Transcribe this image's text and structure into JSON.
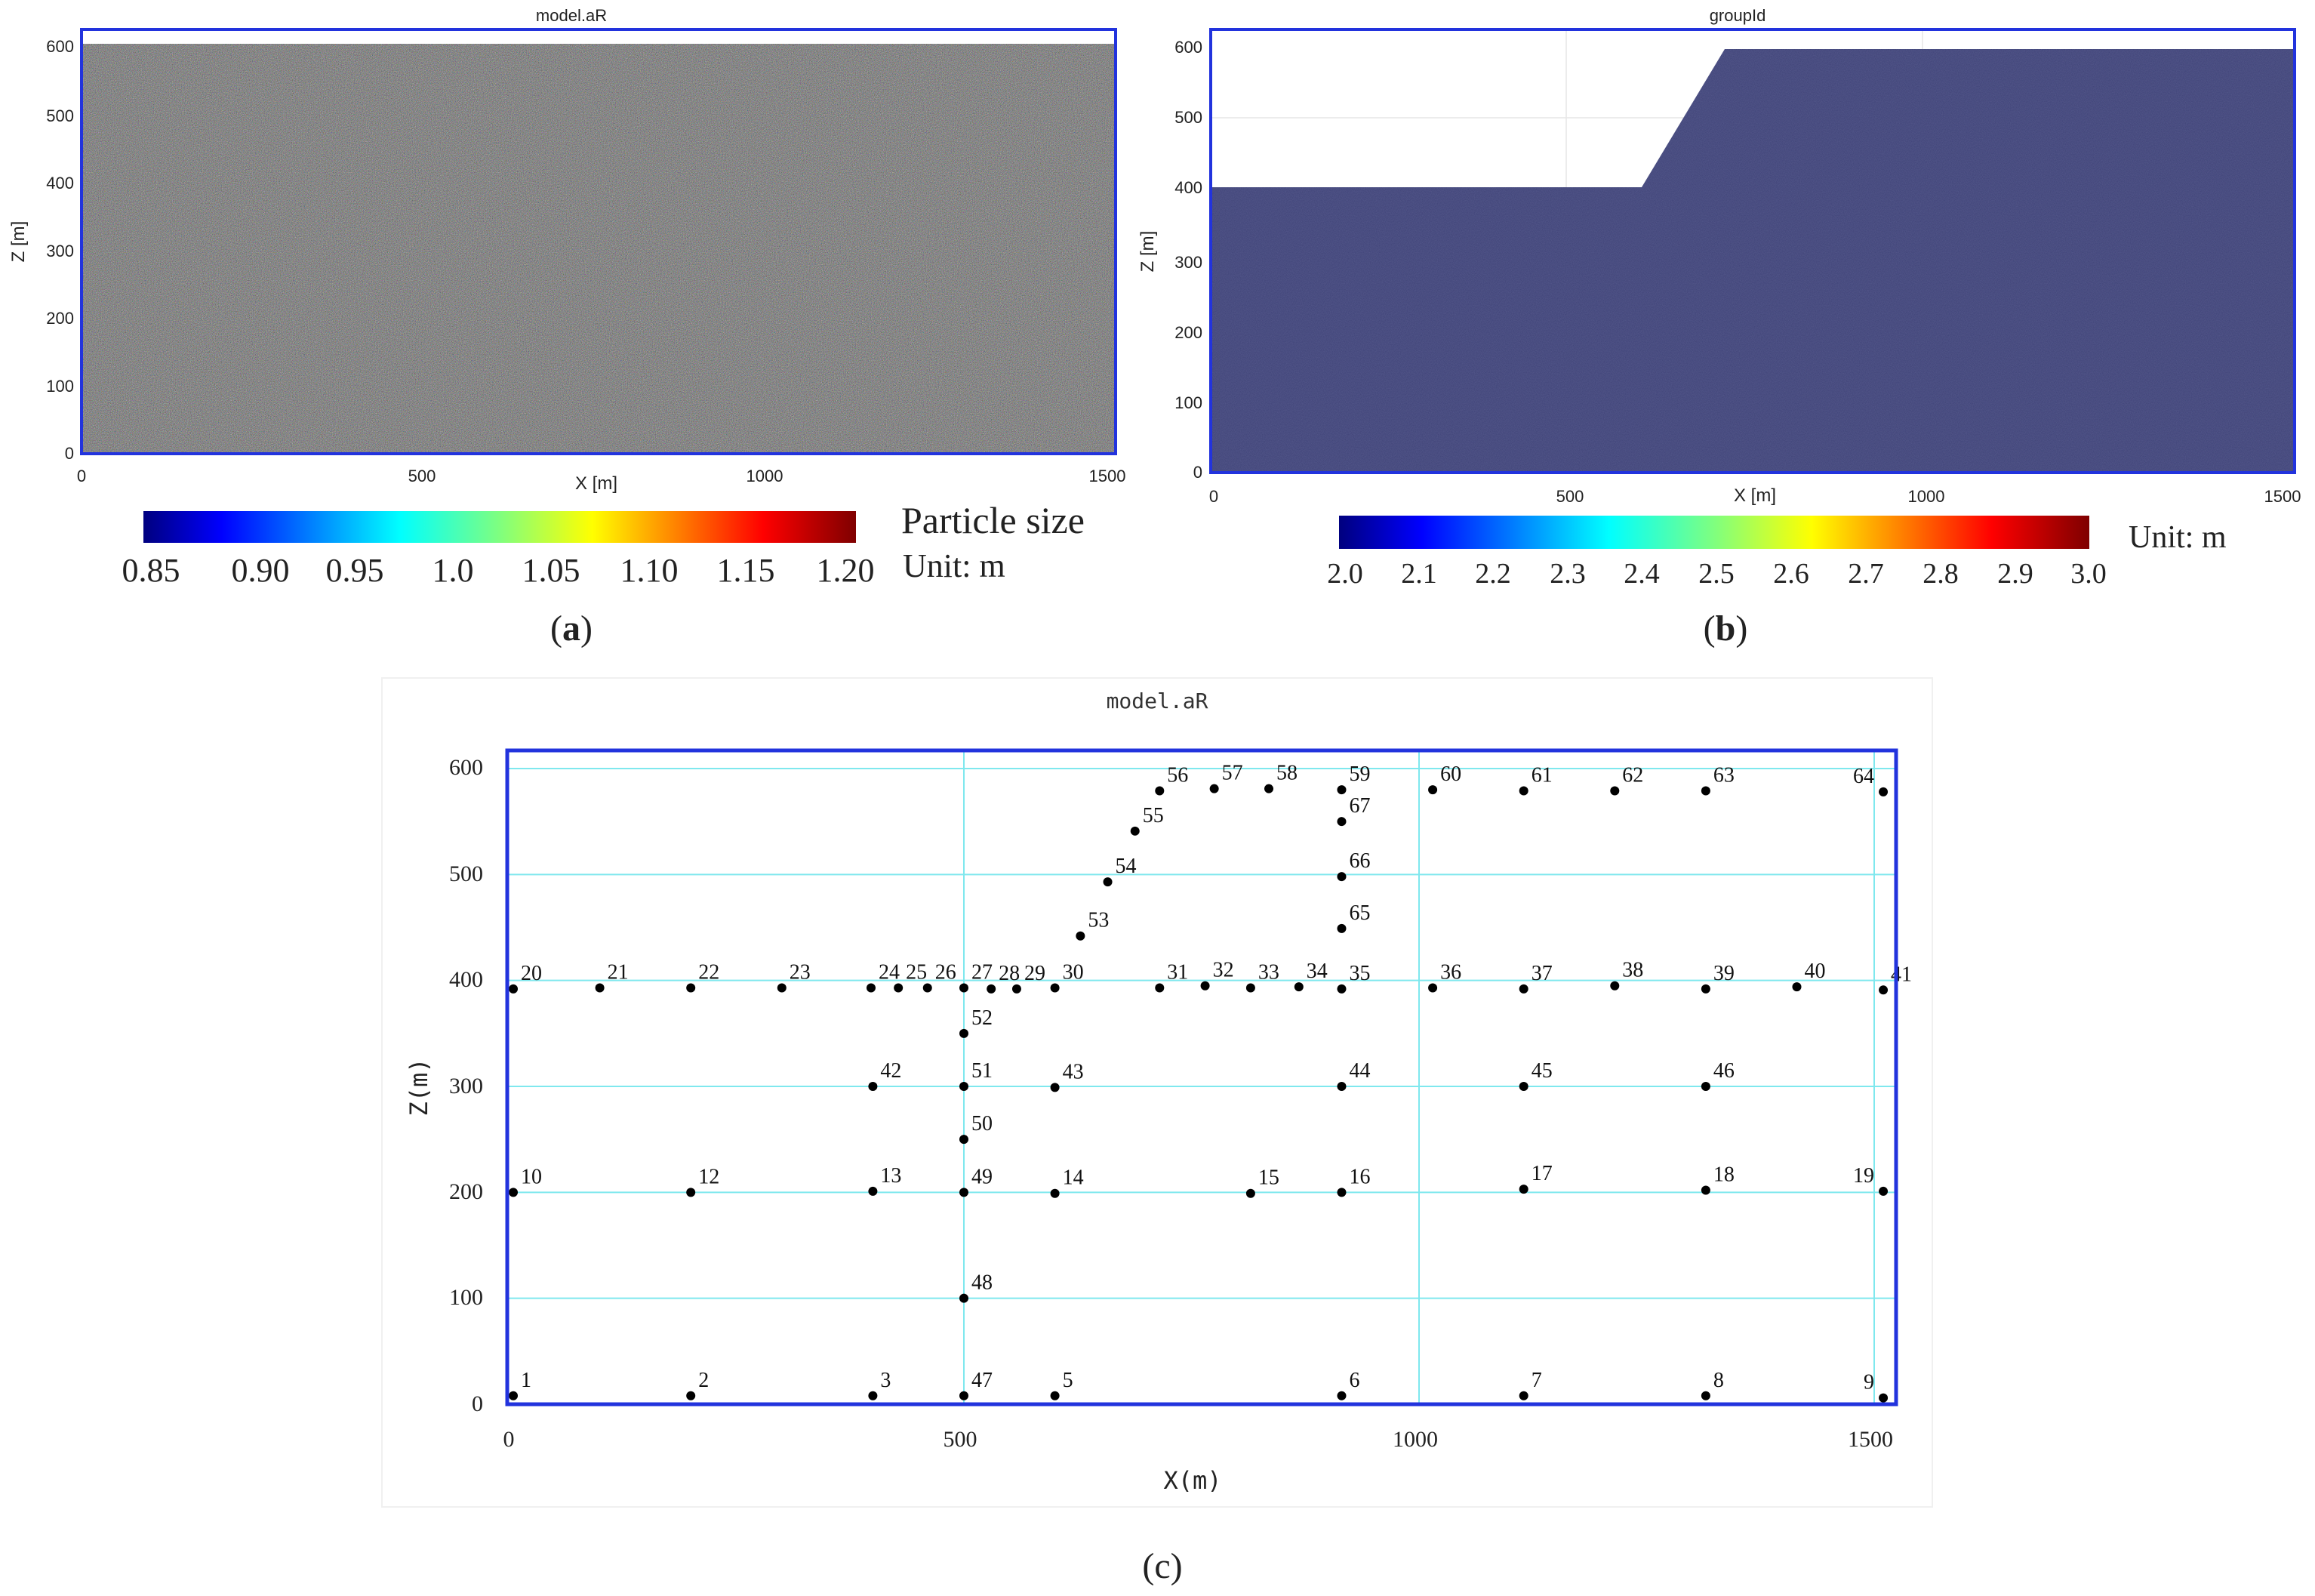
{
  "panel_a": {
    "title": "model.aR",
    "xlabel": "X [m]",
    "ylabel": "Z [m]",
    "xticks": [
      "0",
      "500",
      "1000",
      "1500"
    ],
    "yticks": [
      "0",
      "100",
      "200",
      "300",
      "400",
      "500",
      "600"
    ],
    "colorbar_ticks": [
      "0.85",
      "0.90",
      "0.95",
      "1.0",
      "1.05",
      "1.10",
      "1.15",
      "1.20"
    ],
    "colorbar_title": "Particle size",
    "colorbar_unit": "Unit: m",
    "caption_open": "(",
    "caption_letter": "a",
    "caption_close": ")"
  },
  "panel_b": {
    "title": "groupId",
    "xlabel": "X [m]",
    "ylabel": "Z [m]",
    "xticks": [
      "0",
      "500",
      "1000",
      "1500"
    ],
    "yticks": [
      "0",
      "100",
      "200",
      "300",
      "400",
      "500",
      "600"
    ],
    "colorbar_ticks": [
      "2.0",
      "2.1",
      "2.2",
      "2.3",
      "2.4",
      "2.5",
      "2.6",
      "2.7",
      "2.8",
      "2.9",
      "3.0"
    ],
    "colorbar_unit": "Unit: m",
    "caption_open": "(",
    "caption_letter": "b",
    "caption_close": ")"
  },
  "panel_c": {
    "title": "model.aR",
    "xlabel": "X(m)",
    "ylabel": "Z(m)",
    "xticks": [
      "0",
      "500",
      "1000",
      "1500"
    ],
    "yticks": [
      "0",
      "100",
      "200",
      "300",
      "400",
      "500",
      "600"
    ],
    "caption": "(c)",
    "points": [
      {
        "id": "1",
        "x": 5,
        "z": 8
      },
      {
        "id": "2",
        "x": 200,
        "z": 8
      },
      {
        "id": "3",
        "x": 400,
        "z": 8
      },
      {
        "id": "47",
        "x": 500,
        "z": 8
      },
      {
        "id": "5",
        "x": 600,
        "z": 8
      },
      {
        "id": "6",
        "x": 915,
        "z": 8
      },
      {
        "id": "7",
        "x": 1115,
        "z": 8
      },
      {
        "id": "8",
        "x": 1315,
        "z": 8
      },
      {
        "id": "9",
        "x": 1510,
        "z": 6
      },
      {
        "id": "48",
        "x": 500,
        "z": 100
      },
      {
        "id": "10",
        "x": 5,
        "z": 200
      },
      {
        "id": "12",
        "x": 200,
        "z": 200
      },
      {
        "id": "13",
        "x": 400,
        "z": 201
      },
      {
        "id": "49",
        "x": 500,
        "z": 200
      },
      {
        "id": "14",
        "x": 600,
        "z": 199
      },
      {
        "id": "15",
        "x": 815,
        "z": 199
      },
      {
        "id": "16",
        "x": 915,
        "z": 200
      },
      {
        "id": "17",
        "x": 1115,
        "z": 203
      },
      {
        "id": "18",
        "x": 1315,
        "z": 202
      },
      {
        "id": "19",
        "x": 1510,
        "z": 201
      },
      {
        "id": "50",
        "x": 500,
        "z": 250
      },
      {
        "id": "42",
        "x": 400,
        "z": 300
      },
      {
        "id": "51",
        "x": 500,
        "z": 300
      },
      {
        "id": "43",
        "x": 600,
        "z": 299
      },
      {
        "id": "44",
        "x": 915,
        "z": 300
      },
      {
        "id": "45",
        "x": 1115,
        "z": 300
      },
      {
        "id": "46",
        "x": 1315,
        "z": 300
      },
      {
        "id": "52",
        "x": 500,
        "z": 350
      },
      {
        "id": "20",
        "x": 5,
        "z": 392
      },
      {
        "id": "21",
        "x": 100,
        "z": 393
      },
      {
        "id": "22",
        "x": 200,
        "z": 393
      },
      {
        "id": "23",
        "x": 300,
        "z": 393
      },
      {
        "id": "24",
        "x": 398,
        "z": 393
      },
      {
        "id": "25",
        "x": 428,
        "z": 393
      },
      {
        "id": "26",
        "x": 460,
        "z": 393
      },
      {
        "id": "27",
        "x": 500,
        "z": 393
      },
      {
        "id": "28",
        "x": 530,
        "z": 392
      },
      {
        "id": "29",
        "x": 558,
        "z": 392
      },
      {
        "id": "30",
        "x": 600,
        "z": 393
      },
      {
        "id": "31",
        "x": 715,
        "z": 393
      },
      {
        "id": "32",
        "x": 765,
        "z": 395
      },
      {
        "id": "33",
        "x": 815,
        "z": 393
      },
      {
        "id": "34",
        "x": 868,
        "z": 394
      },
      {
        "id": "35",
        "x": 915,
        "z": 392
      },
      {
        "id": "36",
        "x": 1015,
        "z": 393
      },
      {
        "id": "37",
        "x": 1115,
        "z": 392
      },
      {
        "id": "38",
        "x": 1215,
        "z": 395
      },
      {
        "id": "39",
        "x": 1315,
        "z": 392
      },
      {
        "id": "40",
        "x": 1415,
        "z": 394
      },
      {
        "id": "41",
        "x": 1510,
        "z": 391
      },
      {
        "id": "53",
        "x": 628,
        "z": 442
      },
      {
        "id": "54",
        "x": 658,
        "z": 493
      },
      {
        "id": "55",
        "x": 688,
        "z": 541
      },
      {
        "id": "56",
        "x": 715,
        "z": 579
      },
      {
        "id": "57",
        "x": 775,
        "z": 581
      },
      {
        "id": "58",
        "x": 835,
        "z": 581
      },
      {
        "id": "59",
        "x": 915,
        "z": 580
      },
      {
        "id": "60",
        "x": 1015,
        "z": 580
      },
      {
        "id": "61",
        "x": 1115,
        "z": 579
      },
      {
        "id": "62",
        "x": 1215,
        "z": 579
      },
      {
        "id": "63",
        "x": 1315,
        "z": 579
      },
      {
        "id": "64",
        "x": 1510,
        "z": 578
      },
      {
        "id": "65",
        "x": 915,
        "z": 449
      },
      {
        "id": "66",
        "x": 915,
        "z": 498
      },
      {
        "id": "67",
        "x": 915,
        "z": 550
      }
    ]
  },
  "colors": {
    "frame": "#2233dd",
    "grid": "#7fe8ee",
    "dots": "#000000",
    "particle_fill": "#3b3f74"
  }
}
